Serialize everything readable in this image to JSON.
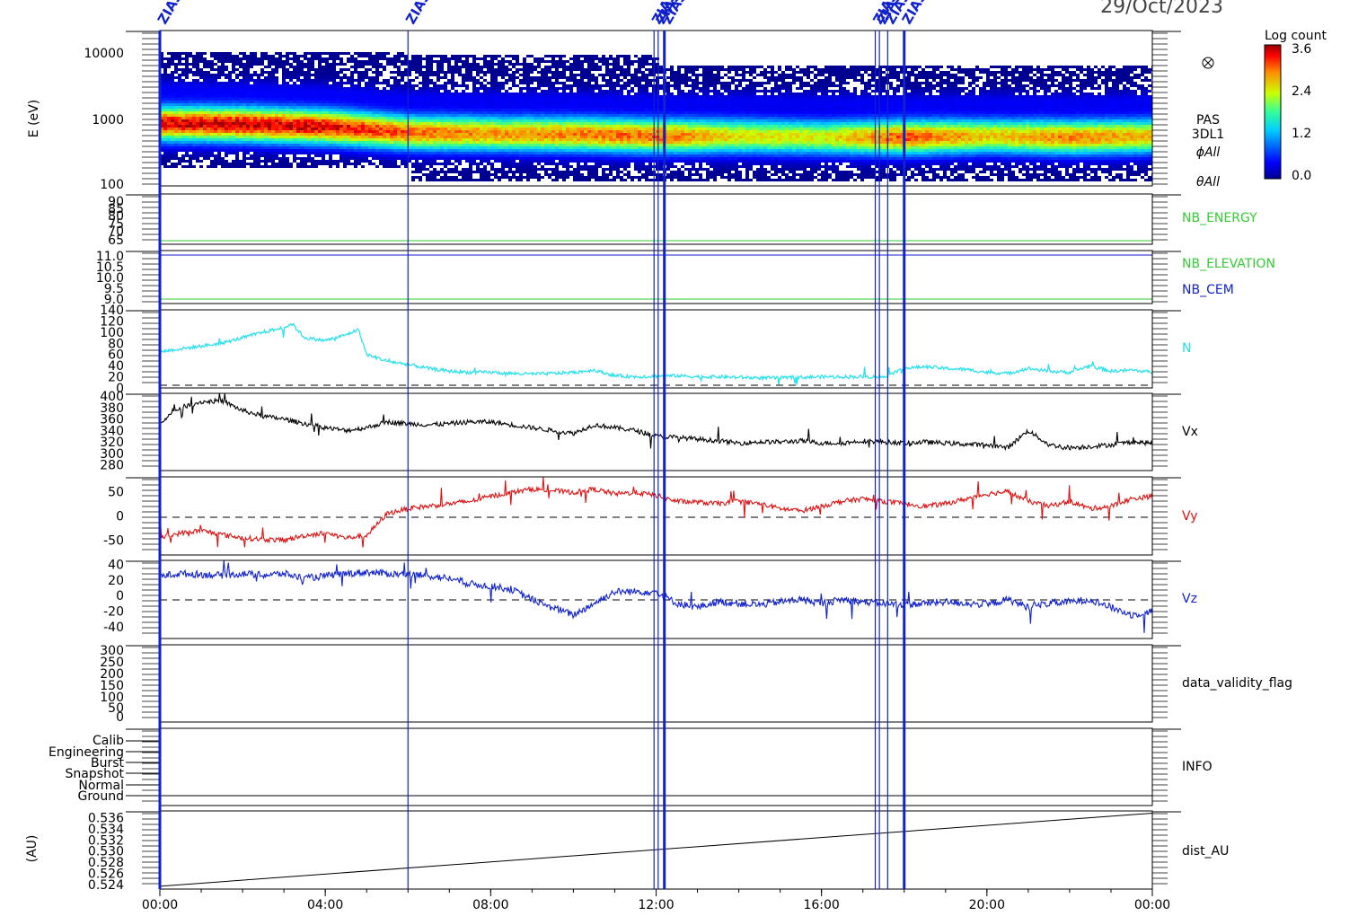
{
  "date_title": "29/Oct/2023",
  "marker_label": "ZIAS",
  "marker_times": [
    0.0,
    6.0,
    11.95,
    12.05,
    12.2,
    17.3,
    17.4,
    17.6,
    18.0
  ],
  "x_ticks": [
    "00:00",
    "04:00",
    "08:00",
    "12:00",
    "16:00",
    "20:00",
    "00:00"
  ],
  "colorbar": {
    "title": "Log count",
    "ticks": [
      "3.6",
      "2.4",
      "1.2",
      "0.0"
    ],
    "range": [
      0.0,
      3.6
    ]
  },
  "panels": {
    "spectrogram": {
      "ylabel": "E (eV)",
      "ticks": [
        "10000",
        "1000",
        "100"
      ],
      "log_scale": true,
      "yrange": [
        100,
        15000
      ],
      "labels": [
        "PAS",
        "3DL1",
        "ϕAll",
        "θAll"
      ]
    },
    "nb_energy": {
      "ticks": [
        "90",
        "85",
        "80",
        "75",
        "70",
        "65"
      ],
      "label": "NB_ENERGY",
      "value": 64.5
    },
    "nb_elevation": {
      "ticks": [
        "11.0",
        "10.5",
        "10.0",
        "9.5",
        "9.0"
      ],
      "labels": [
        "NB_ELEVATION",
        "NB_CEM"
      ],
      "elevation_value": 8.9,
      "cem_value": 11.0
    },
    "n": {
      "ticks": [
        "140",
        "120",
        "100",
        "80",
        "60",
        "40",
        "20",
        "0"
      ],
      "label": "N",
      "yrange": [
        0,
        140
      ]
    },
    "vx": {
      "ticks": [
        "400",
        "380",
        "360",
        "340",
        "320",
        "300",
        "280"
      ],
      "label": "Vx",
      "yrange": [
        270,
        405
      ]
    },
    "vy": {
      "ticks": [
        "50",
        "0",
        "-50"
      ],
      "label": "Vy",
      "yrange": [
        -80,
        80
      ]
    },
    "vz": {
      "ticks": [
        "40",
        "20",
        "0",
        "-20",
        "-40"
      ],
      "label": "Vz",
      "yrange": [
        -55,
        45
      ]
    },
    "validity": {
      "ticks": [
        "300",
        "250",
        "200",
        "150",
        "100",
        "50",
        "0"
      ],
      "label": "data_validity_flag"
    },
    "info": {
      "ticks": [
        "Calib",
        "Engineering",
        "Burst",
        "Snapshot",
        "Normal",
        "Ground"
      ],
      "label": "INFO"
    },
    "dist": {
      "ylabel": "(AU)",
      "ticks": [
        "0.536",
        "0.534",
        "0.532",
        "0.530",
        "0.528",
        "0.526",
        "0.524"
      ],
      "label": "dist_AU",
      "yrange": [
        0.5232,
        0.5372
      ]
    }
  },
  "chart_data": [
    {
      "type": "line",
      "ylabel": "N",
      "xlabel": "",
      "xunit": "hours",
      "series": [
        {
          "name": "N",
          "color": "#22e0ee",
          "x": [
            0,
            0.5,
            1,
            1.5,
            2,
            2.5,
            3,
            3.2,
            3.5,
            4,
            4.5,
            4.8,
            5,
            5.5,
            6,
            6.5,
            7,
            7.5,
            8,
            8.5,
            9,
            9.5,
            10,
            10.5,
            11,
            11.5,
            12,
            12.5,
            13,
            13.5,
            14,
            14.5,
            15,
            15.5,
            16,
            16.5,
            17,
            17.5,
            18,
            18.5,
            19,
            19.5,
            20,
            20.5,
            21,
            21.5,
            22,
            22.5,
            23,
            23.5,
            24
          ],
          "y": [
            65,
            70,
            75,
            80,
            90,
            100,
            108,
            115,
            90,
            85,
            95,
            105,
            60,
            48,
            42,
            35,
            30,
            28,
            28,
            26,
            25,
            26,
            28,
            32,
            22,
            20,
            21,
            22,
            20,
            20,
            19,
            18,
            18,
            19,
            20,
            20,
            20,
            20,
            35,
            38,
            35,
            33,
            28,
            26,
            35,
            30,
            28,
            40,
            30,
            32,
            28
          ]
        }
      ]
    },
    {
      "type": "line",
      "ylabel": "Vx",
      "xlabel": "",
      "xunit": "hours",
      "series": [
        {
          "name": "Vx",
          "color": "#000000",
          "x": [
            0,
            0.5,
            1,
            1.5,
            2,
            2.5,
            3,
            3.5,
            4,
            4.5,
            5,
            5.5,
            6,
            6.5,
            7,
            7.5,
            8,
            8.5,
            9,
            9.5,
            10,
            10.5,
            11,
            11.5,
            12,
            12.5,
            13,
            13.5,
            14,
            14.5,
            15,
            15.5,
            16,
            16.5,
            17,
            17.5,
            18,
            18.5,
            19,
            19.5,
            20,
            20.5,
            21,
            21.5,
            22,
            22.5,
            23,
            23.5,
            24
          ],
          "y": [
            355,
            380,
            390,
            392,
            375,
            365,
            360,
            352,
            345,
            340,
            345,
            355,
            352,
            350,
            352,
            355,
            355,
            350,
            345,
            340,
            335,
            350,
            345,
            340,
            330,
            328,
            325,
            322,
            318,
            320,
            320,
            322,
            318,
            318,
            322,
            320,
            318,
            320,
            318,
            316,
            315,
            310,
            340,
            315,
            310,
            312,
            315,
            320,
            318
          ]
        }
      ]
    },
    {
      "type": "line",
      "ylabel": "Vy",
      "xlabel": "",
      "xunit": "hours",
      "series": [
        {
          "name": "Vy",
          "color": "#dd1111",
          "x": [
            0,
            0.5,
            1,
            1.5,
            2,
            2.5,
            3,
            3.5,
            4,
            4.5,
            5,
            5.5,
            6,
            6.5,
            7,
            7.5,
            8,
            8.5,
            9,
            9.5,
            10,
            10.5,
            11,
            11.5,
            12,
            12.5,
            13,
            13.5,
            14,
            14.5,
            15,
            15.5,
            16,
            16.5,
            17,
            17.5,
            18,
            18.5,
            19,
            19.5,
            20,
            20.5,
            21,
            21.5,
            22,
            22.5,
            23,
            23.5,
            24
          ],
          "y": [
            -45,
            -35,
            -30,
            -38,
            -45,
            -48,
            -50,
            -40,
            -35,
            -45,
            -40,
            5,
            15,
            20,
            25,
            30,
            40,
            48,
            55,
            52,
            48,
            55,
            45,
            48,
            42,
            30,
            28,
            25,
            30,
            25,
            15,
            10,
            20,
            30,
            35,
            30,
            25,
            20,
            25,
            35,
            45,
            50,
            30,
            20,
            30,
            15,
            20,
            35,
            40
          ]
        }
      ]
    },
    {
      "type": "line",
      "ylabel": "Vz",
      "xlabel": "",
      "xunit": "hours",
      "series": [
        {
          "name": "Vz",
          "color": "#1122cc",
          "x": [
            0,
            0.5,
            1,
            1.5,
            2,
            2.5,
            3,
            3.5,
            4,
            4.5,
            5,
            5.5,
            6,
            6.5,
            7,
            7.5,
            8,
            8.5,
            9,
            9.5,
            10,
            10.5,
            11,
            11.5,
            12,
            12.5,
            13,
            13.5,
            14,
            14.5,
            15,
            15.5,
            16,
            16.5,
            17,
            17.5,
            18,
            18.5,
            19,
            19.5,
            20,
            20.5,
            21,
            21.5,
            22,
            22.5,
            23,
            23.5,
            24
          ],
          "y": [
            25,
            28,
            27,
            26,
            28,
            26,
            28,
            22,
            25,
            28,
            30,
            28,
            27,
            25,
            22,
            15,
            12,
            8,
            -5,
            -15,
            -25,
            -10,
            5,
            5,
            5,
            -10,
            -15,
            -8,
            -10,
            -12,
            -8,
            -5,
            -10,
            -5,
            -8,
            -10,
            -12,
            -10,
            -8,
            -10,
            -12,
            -5,
            -15,
            -10,
            -8,
            -5,
            -15,
            -25,
            -20
          ]
        }
      ]
    },
    {
      "type": "line",
      "ylabel": "dist_AU",
      "xlabel": "",
      "xunit": "hours",
      "series": [
        {
          "name": "dist_AU",
          "color": "#000000",
          "x": [
            0,
            24
          ],
          "y": [
            0.5237,
            0.5368
          ]
        }
      ]
    },
    {
      "type": "heatmap",
      "ylabel": "E (eV)",
      "xunit": "hours",
      "yunit": "eV",
      "peak_energy_x": [
        0,
        2,
        4,
        5,
        6,
        8,
        10,
        12,
        14,
        16,
        18,
        20,
        22,
        24
      ],
      "peak_energy_y": [
        780,
        760,
        700,
        640,
        580,
        560,
        550,
        520,
        520,
        500,
        500,
        520,
        500,
        520
      ],
      "peak_log_count": [
        3.4,
        3.5,
        3.4,
        3.2,
        3.0,
        2.8,
        2.9,
        3.0,
        2.5,
        2.4,
        3.1,
        2.6,
        2.9,
        2.7
      ]
    }
  ]
}
